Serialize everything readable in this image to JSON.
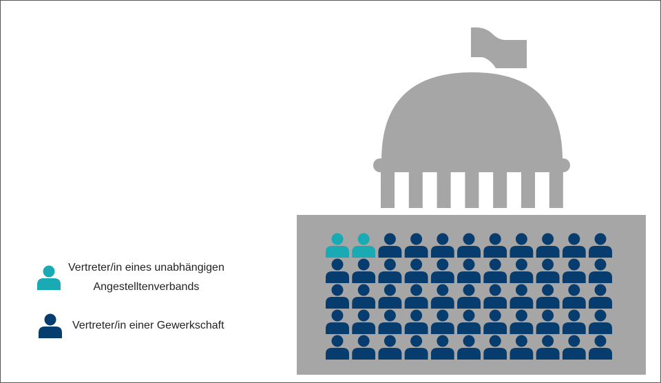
{
  "legend": {
    "independent": {
      "line1": "Vertreter/in eines unabhängigen",
      "line2": "Angestelltenverbands",
      "color": "#1aaab3",
      "icon": "person-icon"
    },
    "union": {
      "label": "Vertreter/in einer Gewerkschaft",
      "color": "#063d6e",
      "icon": "person-icon"
    }
  },
  "colors": {
    "building": "#a6a6a6",
    "flag": "#a6a6a6"
  },
  "grid": {
    "rows": 5,
    "cols": 11,
    "independent_count": 2,
    "union_count": 53
  }
}
